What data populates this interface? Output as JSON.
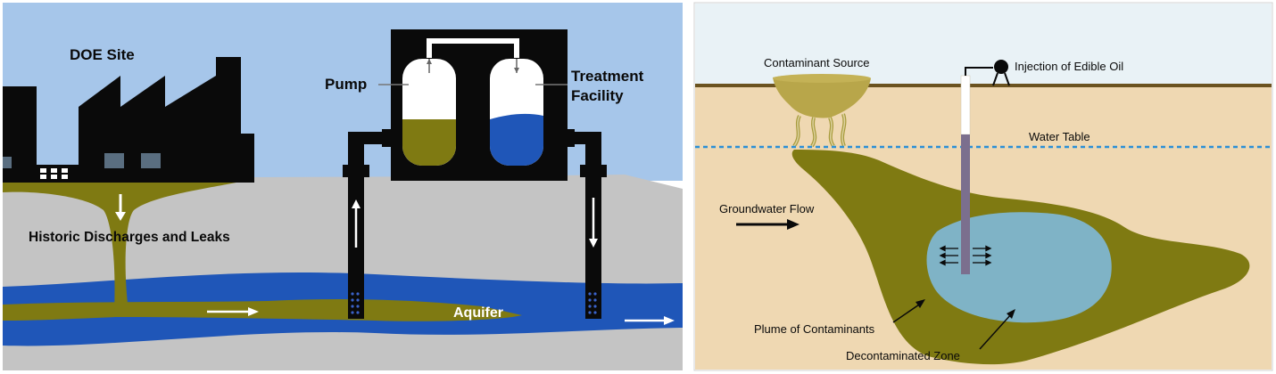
{
  "left_panel": {
    "site_label": "DOE Site",
    "pump_label": "Pump",
    "treatment_label_line1": "Treatment",
    "treatment_label_line2": "Facility",
    "discharge_label": "Historic Discharges and Leaks",
    "aquifer_label": "Aquifer"
  },
  "right_panel": {
    "source_label": "Contaminant Source",
    "injection_label": "Injection of Edible Oil",
    "water_table_label": "Water Table",
    "flow_label": "Groundwater Flow",
    "plume_label": "Plume of Contaminants",
    "zone_label": "Decontaminated Zone"
  },
  "colors": {
    "sky": "#a6c6ea",
    "ground": "#c4c4c4",
    "aquifer": "#1f56b8",
    "contaminant": "#7f7a12",
    "building": "#0a0a0a",
    "soil": "#efd8b2",
    "clean_zone": "#7fb3c6",
    "water_table": "#2b8fd6",
    "pipe_lower": "#7b6f8e"
  }
}
